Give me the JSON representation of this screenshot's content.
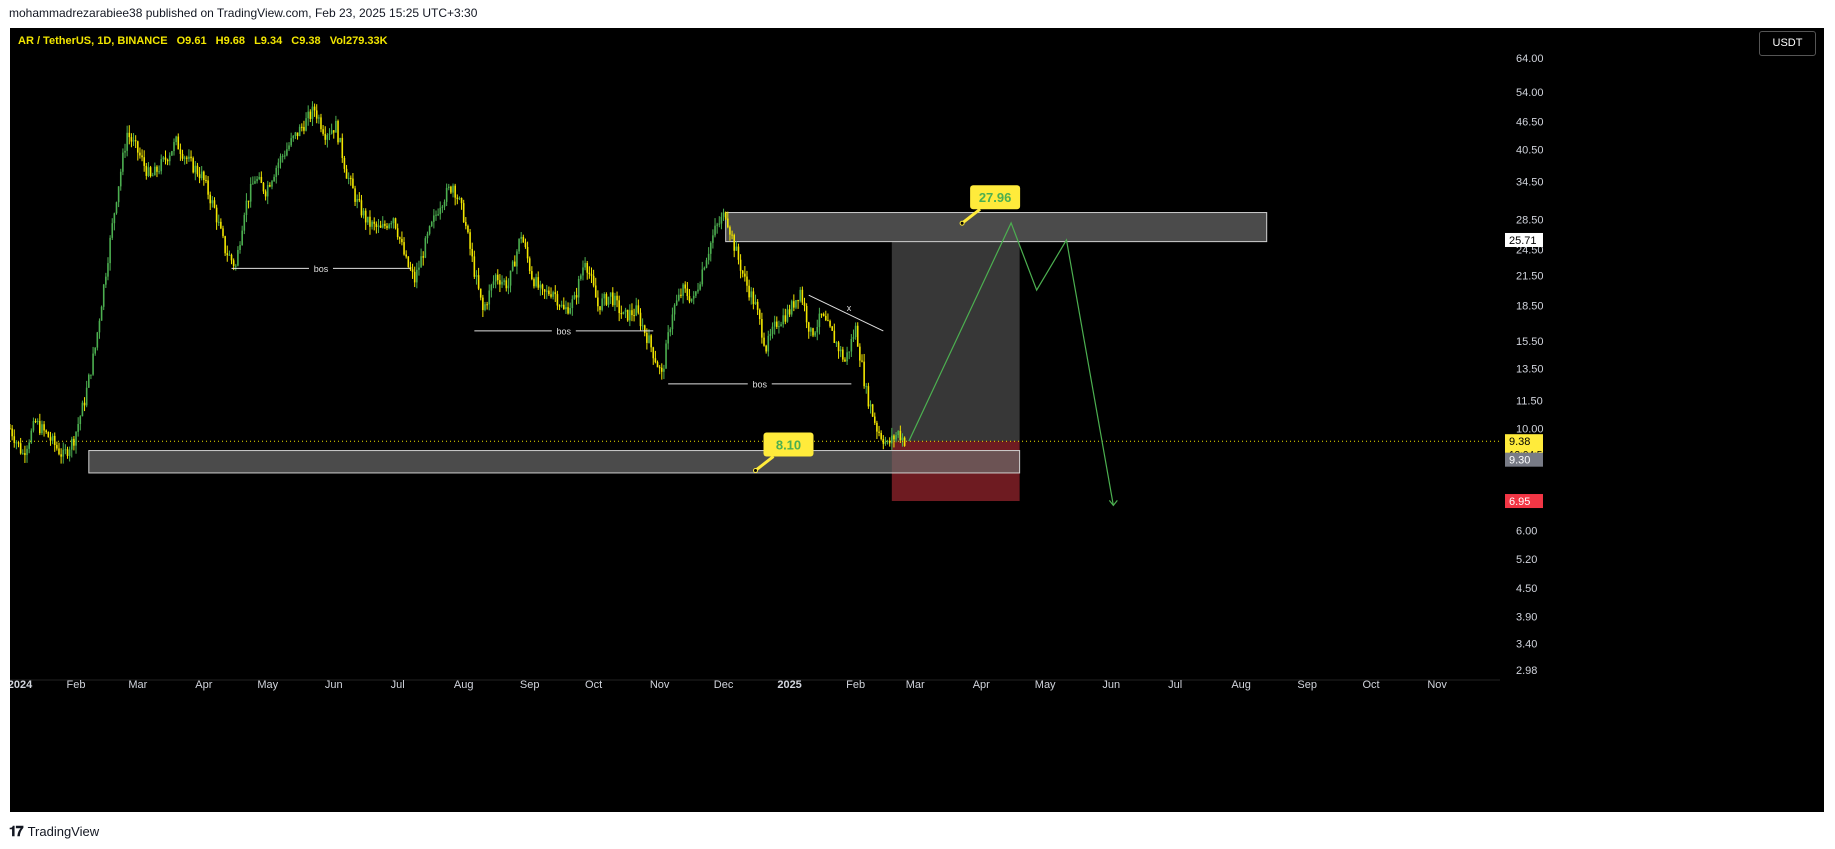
{
  "header": {
    "publisher": "mohammadrezarabiee38 published on TradingView.com, Feb 23, 2025 15:25 UTC+3:30"
  },
  "legend": {
    "symbol": "AR / TetherUS, 1D, BINANCE",
    "open": "O9.61",
    "high": "H9.68",
    "low": "L9.34",
    "close": "C9.38",
    "volume": "Vol279.33K"
  },
  "currency_button": "USDT",
  "footer": {
    "brand": "TradingView"
  },
  "colors": {
    "background": "#000000",
    "candle_up": "#4caf50",
    "candle_down": "#f2e600",
    "zone_fill": "#6b6b6b",
    "target_zone": "#454545",
    "stop_zone": "#7a1e25",
    "projection": "#4caf50",
    "label_bg": "#ffeb3b",
    "label_text": "#4caf50",
    "stop_label_bg": "#f23645"
  },
  "chart_data": {
    "type": "candlestick",
    "symbol": "AR / TetherUS",
    "timeframe": "1D",
    "exchange": "BINANCE",
    "y_scale": "log",
    "ylim": [
      2.98,
      64.0
    ],
    "price_ticks": [
      "64.00",
      "54.00",
      "46.50",
      "40.50",
      "34.50",
      "28.50",
      "24.50",
      "21.50",
      "18.50",
      "15.50",
      "13.50",
      "11.50",
      "10.00",
      "6.00",
      "5.20",
      "4.50",
      "3.90",
      "3.40",
      "2.98"
    ],
    "time_labels": [
      "2024",
      "Feb",
      "Mar",
      "Apr",
      "May",
      "Jun",
      "Jul",
      "Aug",
      "Sep",
      "Oct",
      "Nov",
      "Dec",
      "2025",
      "Feb",
      "Mar",
      "Apr",
      "May",
      "Jun",
      "Jul",
      "Aug",
      "Sep",
      "Oct",
      "Nov"
    ],
    "time_label_days": [
      0,
      31,
      60,
      91,
      121,
      152,
      182,
      213,
      244,
      274,
      305,
      335,
      366,
      397,
      425,
      456,
      486,
      517,
      547,
      578,
      609,
      639,
      670
    ],
    "price_path": [
      [
        0,
        10.0
      ],
      [
        6,
        8.8
      ],
      [
        12,
        10.3
      ],
      [
        18,
        9.6
      ],
      [
        25,
        8.7
      ],
      [
        30,
        9.5
      ],
      [
        35,
        11.5
      ],
      [
        40,
        15.0
      ],
      [
        45,
        22.0
      ],
      [
        50,
        32.0
      ],
      [
        55,
        44.0
      ],
      [
        60,
        40.0
      ],
      [
        66,
        35.0
      ],
      [
        72,
        38.0
      ],
      [
        78,
        42.0
      ],
      [
        84,
        38.0
      ],
      [
        90,
        35.5
      ],
      [
        96,
        30.0
      ],
      [
        101,
        24.5
      ],
      [
        106,
        22.5
      ],
      [
        110,
        30.0
      ],
      [
        115,
        35.0
      ],
      [
        120,
        33.0
      ],
      [
        126,
        38.0
      ],
      [
        132,
        42.0
      ],
      [
        138,
        46.0
      ],
      [
        143,
        49.5
      ],
      [
        148,
        44.0
      ],
      [
        153,
        45.5
      ],
      [
        158,
        36.0
      ],
      [
        163,
        31.0
      ],
      [
        168,
        28.0
      ],
      [
        174,
        27.0
      ],
      [
        180,
        29.0
      ],
      [
        186,
        23.0
      ],
      [
        190,
        21.0
      ],
      [
        196,
        26.0
      ],
      [
        202,
        31.0
      ],
      [
        208,
        34.0
      ],
      [
        213,
        29.0
      ],
      [
        218,
        22.0
      ],
      [
        222,
        18.0
      ],
      [
        228,
        21.5
      ],
      [
        234,
        20.5
      ],
      [
        240,
        26.5
      ],
      [
        245,
        21.5
      ],
      [
        250,
        19.5
      ],
      [
        255,
        20.0
      ],
      [
        260,
        18.0
      ],
      [
        265,
        19.0
      ],
      [
        270,
        23.5
      ],
      [
        276,
        18.5
      ],
      [
        282,
        19.5
      ],
      [
        288,
        17.5
      ],
      [
        294,
        18.0
      ],
      [
        300,
        15.5
      ],
      [
        306,
        13.0
      ],
      [
        311,
        18.0
      ],
      [
        316,
        20.0
      ],
      [
        321,
        19.0
      ],
      [
        326,
        23.0
      ],
      [
        331,
        27.0
      ],
      [
        336,
        29.5
      ],
      [
        340,
        25.0
      ],
      [
        345,
        21.0
      ],
      [
        350,
        18.5
      ],
      [
        355,
        15.0
      ],
      [
        360,
        17.0
      ],
      [
        366,
        18.0
      ],
      [
        371,
        20.0
      ],
      [
        376,
        16.0
      ],
      [
        381,
        17.5
      ],
      [
        386,
        16.0
      ],
      [
        392,
        14.0
      ],
      [
        397,
        16.5
      ],
      [
        402,
        12.0
      ],
      [
        407,
        10.0
      ],
      [
        412,
        9.2
      ],
      [
        417,
        9.8
      ],
      [
        420,
        9.4
      ]
    ],
    "current_price": 9.38,
    "current_price_countdown": "12:04:58",
    "price_label_930": "9.30",
    "take_profit_label": "25.71",
    "stop_loss_label": "6.95",
    "annotations": {
      "bos_label": "bos",
      "bos_lines": [
        {
          "from_day": 104,
          "to_day": 188,
          "price": 22.3
        },
        {
          "from_day": 218,
          "to_day": 302,
          "price": 16.3
        },
        {
          "from_day": 309,
          "to_day": 395,
          "price": 12.5
        }
      ],
      "trendline": {
        "from": [
          375,
          19.5
        ],
        "to": [
          410,
          16.3
        ]
      },
      "trendline_mark": "x",
      "resistance_zone": {
        "from_day": 336,
        "to_day": 590,
        "top": 29.5,
        "bottom": 25.5
      },
      "support_zone": {
        "from_day": 37,
        "to_day": 474,
        "top": 8.95,
        "bottom": 8.0
      },
      "target_box": {
        "from_day": 414,
        "to_day": 474,
        "top": 25.5,
        "bottom": 9.38
      },
      "stop_box": {
        "from_day": 414,
        "to_day": 474,
        "top": 9.38,
        "bottom": 6.95
      },
      "callout_top": {
        "text": "27.96",
        "anchor_day": 447,
        "anchor_price": 27.96
      },
      "callout_bottom": {
        "text": "8.10",
        "anchor_day": 350,
        "anchor_price": 8.1
      },
      "projection_path": [
        [
          422,
          9.38
        ],
        [
          470,
          28.0
        ],
        [
          482,
          20.0
        ],
        [
          496,
          25.71
        ],
        [
          518,
          6.8
        ]
      ]
    }
  }
}
